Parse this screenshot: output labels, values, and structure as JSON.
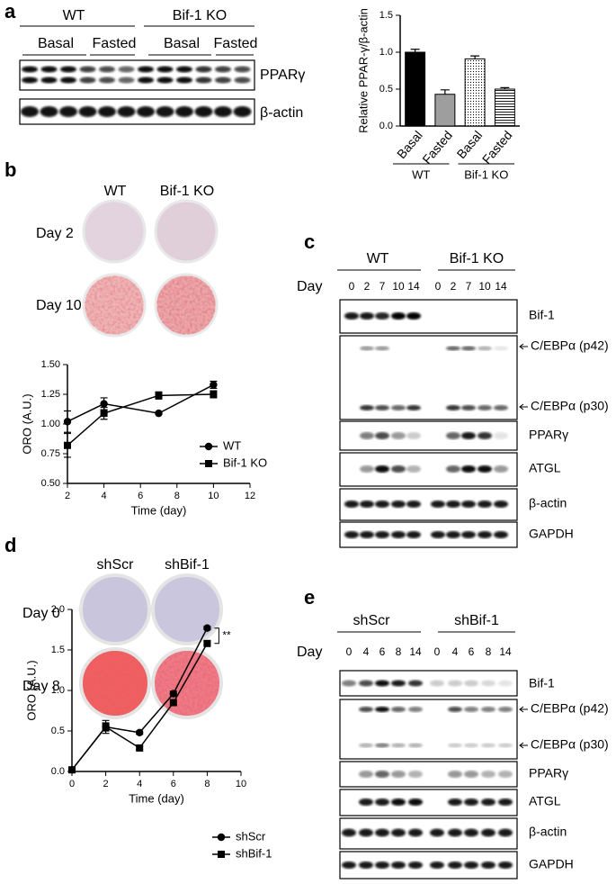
{
  "panel_labels": [
    "a",
    "b",
    "c",
    "d",
    "e"
  ],
  "panel_a": {
    "groups": [
      "WT",
      "Bif-1 KO"
    ],
    "conditions": [
      "Basal",
      "Fasted",
      "Basal",
      "Fasted"
    ],
    "bands": [
      "PPARγ",
      "β-actin"
    ]
  },
  "panel_b": {
    "columns": [
      "WT",
      "Bif-1 KO"
    ],
    "rows": [
      "Day 2",
      "Day 10"
    ]
  },
  "panel_c": {
    "groups": [
      "WT",
      "Bif-1 KO"
    ],
    "day_label": "Day",
    "lanes": [
      "0",
      "2",
      "7",
      "10",
      "14",
      "0",
      "2",
      "7",
      "10",
      "14"
    ],
    "bands": [
      "Bif-1",
      "C/EBPα (p42)",
      "C/EBPα (p30)",
      "PPARγ",
      "ATGL",
      "β-actin",
      "GAPDH"
    ]
  },
  "panel_d": {
    "columns": [
      "shScr",
      "shBif-1"
    ],
    "rows": [
      "Day 0",
      "Day 8"
    ]
  },
  "panel_e": {
    "groups": [
      "shScr",
      "shBif-1"
    ],
    "day_label": "Day",
    "lanes": [
      "0",
      "4",
      "6",
      "8",
      "14",
      "0",
      "4",
      "6",
      "8",
      "14"
    ],
    "bands": [
      "Bif-1",
      "C/EBPα (p42)",
      "C/EBPα (p30)",
      "PPARγ",
      "ATGL",
      "β-actin",
      "GAPDH"
    ]
  },
  "chart_data": [
    {
      "type": "bar",
      "y_label": "Relative PPAR-γ/β-actin",
      "categories": [
        "Basal",
        "Fasted",
        "Basal",
        "Fasted"
      ],
      "group_labels": [
        "WT",
        "Bif-1 KO"
      ],
      "values": [
        1.0,
        0.43,
        0.91,
        0.5
      ],
      "errors": [
        0.04,
        0.06,
        0.04,
        0.02
      ],
      "fills": [
        "#000000",
        "#9e9e9e",
        "dots",
        "hlines"
      ],
      "ylim": [
        0,
        1.5
      ],
      "yticks": [
        {
          "value": 0,
          "label": "0.0"
        },
        0.5,
        {
          "value": 1,
          "label": "1.0"
        },
        1.5
      ]
    },
    {
      "type": "line",
      "x_label": "Time (day)",
      "y_label": "ORO (A.U.)",
      "x": [
        2,
        4,
        7,
        10
      ],
      "series": [
        {
          "name": "WT",
          "marker": "circle",
          "color": "#000000",
          "values": [
            1.02,
            1.17,
            1.09,
            1.33
          ],
          "errors": [
            0.09,
            0.05,
            0.01,
            0.03
          ]
        },
        {
          "name": "Bif-1 KO",
          "marker": "square",
          "color": "#000000",
          "values": [
            0.82,
            1.09,
            1.24,
            1.25
          ],
          "errors": [
            0.1,
            0.05,
            0.03,
            0.03
          ]
        }
      ],
      "xlim": [
        2,
        12
      ],
      "xticks": [
        2,
        4,
        6,
        8,
        10,
        12
      ],
      "ylim": [
        0.5,
        1.5
      ],
      "yticks": [
        {
          "value": 0.5,
          "label": "0.50"
        },
        0.75,
        {
          "value": 1,
          "label": "1.00"
        },
        1.25,
        {
          "value": 1.5,
          "label": "1.50"
        }
      ],
      "legend": "lower right"
    },
    {
      "type": "line",
      "x_label": "Time (day)",
      "y_label": "ORO (A.U.)",
      "x": [
        0,
        2,
        4,
        6,
        8
      ],
      "series": [
        {
          "name": "shScr",
          "marker": "circle",
          "color": "#000000",
          "values": [
            0.02,
            0.55,
            0.48,
            0.96,
            1.77
          ],
          "errors": [
            0.02,
            0.05,
            0.02,
            0.03,
            0.02
          ]
        },
        {
          "name": "shBif-1",
          "marker": "square",
          "color": "#000000",
          "values": [
            0.02,
            0.55,
            0.29,
            0.85,
            1.58
          ],
          "errors": [
            0.02,
            0.08,
            0.02,
            0.03,
            0.02
          ]
        }
      ],
      "xlim": [
        0,
        10
      ],
      "xticks": [
        0,
        2,
        4,
        6,
        8,
        10
      ],
      "ylim": [
        0,
        2
      ],
      "yticks": [
        {
          "value": 0,
          "label": "0.0"
        },
        0.5,
        {
          "value": 1,
          "label": "1.0"
        },
        1.5,
        {
          "value": 2,
          "label": "2.0"
        }
      ],
      "legend": "lower right",
      "annotation": "**"
    }
  ]
}
